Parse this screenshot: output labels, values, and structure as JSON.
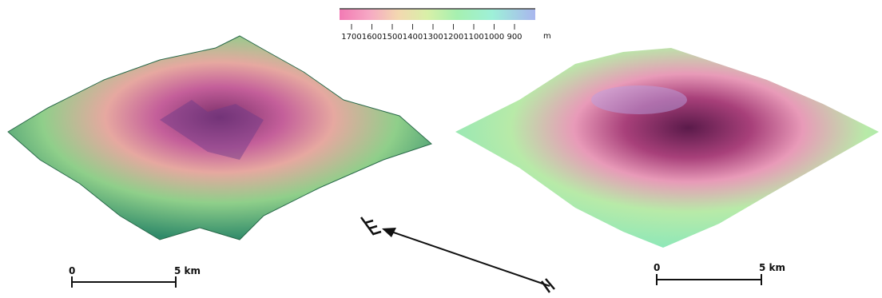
{
  "legend": {
    "ticks": [
      1700,
      1600,
      1500,
      1400,
      1300,
      1200,
      1100,
      1000,
      900
    ],
    "unit": "m"
  },
  "left_scale_bar": {
    "start": "0",
    "end": "5 km"
  },
  "right_scale_bar": {
    "start": "0",
    "end": "5 km"
  }
}
